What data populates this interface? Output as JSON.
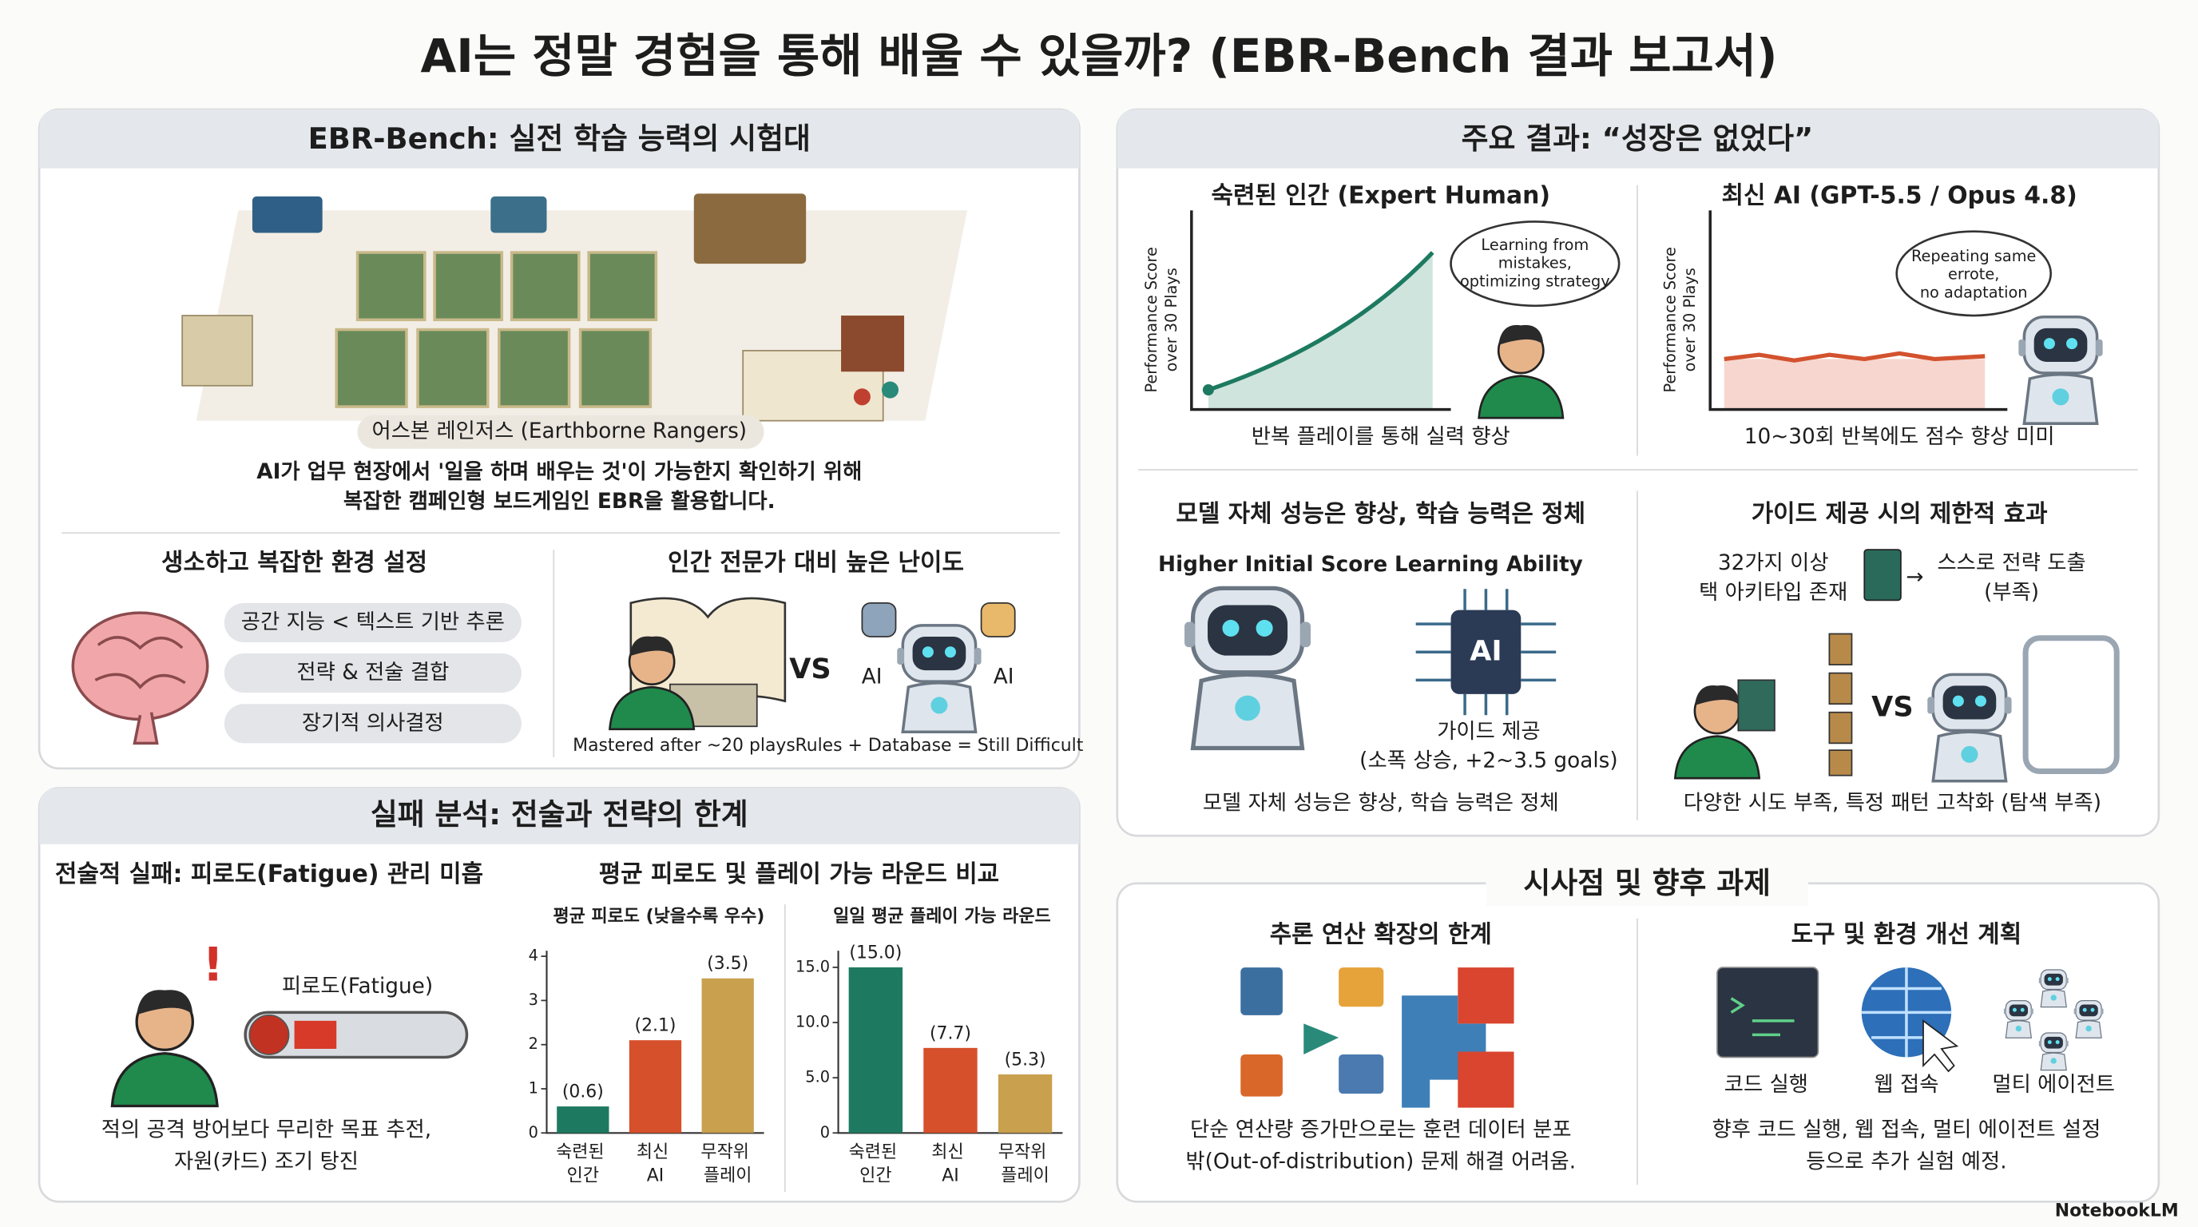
{
  "title": "AI는 정말 경험을 통해 배울 수 있을까? (EBR-Bench 결과 보고서)",
  "benchmark": {
    "heading": "EBR-Bench: 실전 학습 능력의 시험대",
    "image_caption": "어스본 레인저스 (Earthborne Rangers)",
    "description": [
      "AI가 업무 현장에서 '일을 하며 배우는 것'이 가능한지 확인하기 위해",
      "복잡한 캠페인형 보드게임인 EBR을 활용합니다."
    ],
    "environment": {
      "heading": "생소하고 복잡한 환경 설정",
      "items": [
        "공간 지능 < 텍스트 기반 추론",
        "전략 & 전술 결합",
        "장기적 의사결정"
      ]
    },
    "difficulty": {
      "heading": "인간 전문가 대비 높은 난이도",
      "vs": "VS",
      "ai_labels": [
        "AI",
        "AI"
      ],
      "human_caption": "Mastered after ~20 plays",
      "ai_caption": "Rules + Database = Still Difficult"
    }
  },
  "failure": {
    "heading": "실패 분석: 전술과 전략의 한계",
    "tactical": {
      "heading": "전술적 실패: 피로도(Fatigue) 관리 미흡",
      "gauge_label": "피로도(Fatigue)",
      "caption": [
        "적의 공격 방어보다 무리한 목표 추전,",
        "자원(카드) 조기 탕진"
      ]
    },
    "comparison_heading": "평균 피로도 및 플레이 가능 라운드 비교"
  },
  "chart_data": [
    {
      "type": "bar",
      "title": "평균 피로도 (낮을수록 우수)",
      "categories": [
        "숙련된 인간",
        "최신 AI",
        "무작위 플레이"
      ],
      "values": [
        0.6,
        2.1,
        3.5
      ],
      "value_labels": [
        "(0.6)",
        "(2.1)",
        "(3.5)"
      ],
      "colors": [
        "#1d7a60",
        "#d6502c",
        "#c9a04e"
      ],
      "ylim": [
        0,
        4
      ],
      "yticks": [
        0,
        1,
        2,
        3,
        4
      ]
    },
    {
      "type": "bar",
      "title": "일일 평균 플레이 가능 라운드",
      "categories": [
        "숙련된 인간",
        "최신 AI",
        "무작위 플레이"
      ],
      "values": [
        15.0,
        7.7,
        5.3
      ],
      "value_labels": [
        "(15.0)",
        "(7.7)",
        "(5.3)"
      ],
      "colors": [
        "#1d7a60",
        "#d6502c",
        "#c9a04e"
      ],
      "ylim": [
        0,
        16
      ],
      "yticks": [
        0,
        {
          "value": 5,
          "label": "5.0"
        },
        {
          "value": 10,
          "label": "10.0"
        },
        {
          "value": 15,
          "label": "15.0"
        }
      ]
    }
  ],
  "results": {
    "heading": "주요 결과: “성장은 없었다”",
    "human": {
      "title": "숙련된 인간 (Expert Human)",
      "y_label": [
        "Performance Score",
        "over 30 Plays"
      ],
      "bubble": [
        "Learning from",
        "mistakes,",
        "optimizing strategy"
      ],
      "caption": "반복 플레이를 통해 실력 향상"
    },
    "ai": {
      "title": "최신 AI (GPT-5.5 / Opus 4.8)",
      "y_label": [
        "Performance Score",
        "over 30 Plays"
      ],
      "bubble": [
        "Repeating same",
        "errote,",
        "no adaptation"
      ],
      "caption": "10~30회 반복에도 점수 향상 미미"
    },
    "model": {
      "heading": "모델 자체 성능은 향상, 학습 능력은 정체",
      "left_label": "Higher Initial Score",
      "right_label": "Learning Ability",
      "chip": "AI",
      "guide": [
        "가이드 제공",
        "(소폭 상승, +2~3.5 goals)"
      ],
      "caption": "모델 자체 성능은 향상, 학습 능력은 정체"
    },
    "guide": {
      "heading": "가이드 제공 시의 제한적 효과",
      "left": [
        "32가지 이상",
        "택 아키타입 존재"
      ],
      "right": [
        "스스로 전략 도출",
        "(부족)"
      ],
      "vs": "VS",
      "caption": "다양한 시도 부족, 특정 패턴 고착화 (탐색 부족)"
    }
  },
  "implications": {
    "heading": "시사점 및 향후 과제",
    "scaling": {
      "heading": "추론 연산 확장의 한계",
      "caption": [
        "단순 연산량 증가만으로는 훈련 데이터 분포",
        "밖(Out-of-distribution) 문제 해결 어려움."
      ]
    },
    "plans": {
      "heading": "도구 및 환경 개선 계획",
      "tools": [
        "코드 실행",
        "웹 접속",
        "멀티 에이전트"
      ],
      "caption": [
        "향후 코드 실행, 웹 접속, 멀티 에이전트 설정",
        "등으로 추가 실험 예정."
      ]
    }
  },
  "footer": "NotebookLM"
}
